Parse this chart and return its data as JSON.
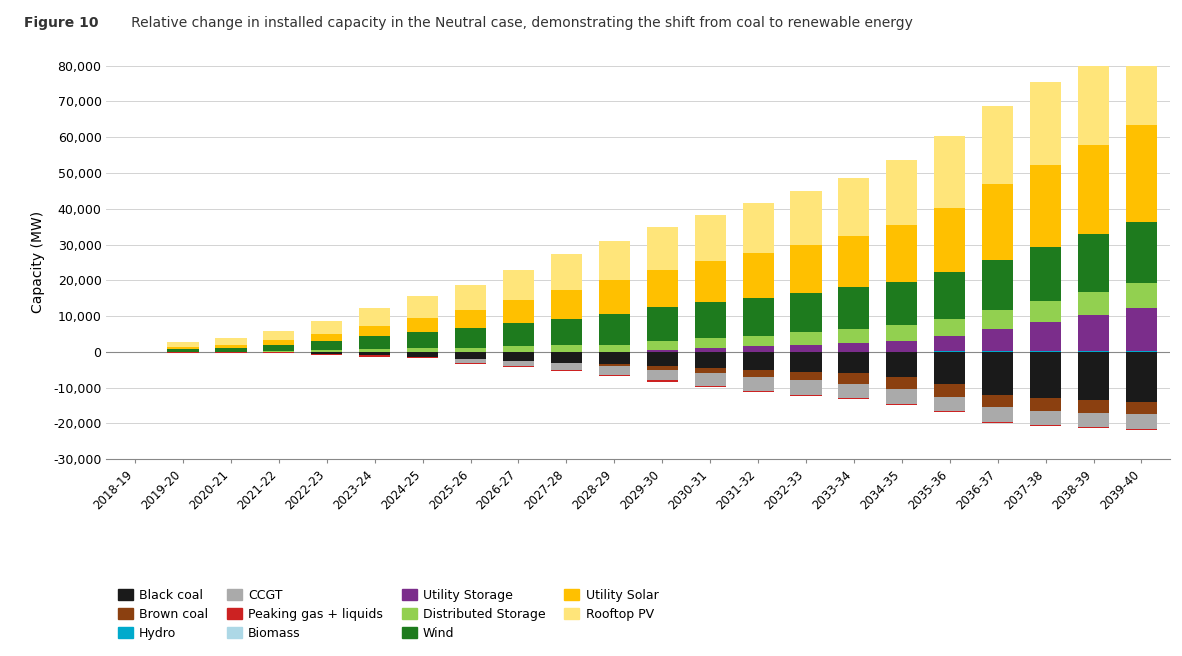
{
  "title_prefix": "Figure 10",
  "title_main": "    Relative change in installed capacity in the Neutral case, demonstrating the shift from coal to renewable energy",
  "ylabel": "Capacity (MW)",
  "ylim": [
    -30000,
    80000
  ],
  "yticks": [
    -30000,
    -20000,
    -10000,
    0,
    10000,
    20000,
    30000,
    40000,
    50000,
    60000,
    70000,
    80000
  ],
  "categories": [
    "2018-19",
    "2019-20",
    "2020-21",
    "2021-22",
    "2022-23",
    "2023-24",
    "2024-25",
    "2025-26",
    "2026-27",
    "2027-28",
    "2028-29",
    "2029-30",
    "2030-31",
    "2031-32",
    "2032-33",
    "2033-34",
    "2034-35",
    "2035-36",
    "2036-37",
    "2037-38",
    "2038-39",
    "2039-40"
  ],
  "series": {
    "Black coal": [
      0,
      0,
      0,
      0,
      -500,
      -1000,
      -1500,
      -2000,
      -2500,
      -3000,
      -3500,
      -4000,
      -4500,
      -5000,
      -5500,
      -6000,
      -7000,
      -9000,
      -12000,
      -13000,
      -13500,
      -14000
    ],
    "Brown coal": [
      0,
      0,
      0,
      0,
      0,
      0,
      0,
      0,
      0,
      0,
      -500,
      -1000,
      -1500,
      -2000,
      -2500,
      -3000,
      -3500,
      -3500,
      -3500,
      -3500,
      -3500,
      -3500
    ],
    "CCGT": [
      0,
      0,
      0,
      0,
      0,
      0,
      0,
      -1000,
      -1500,
      -2000,
      -2500,
      -3000,
      -3500,
      -4000,
      -4000,
      -4000,
      -4000,
      -4000,
      -4000,
      -4000,
      -4000,
      -4000
    ],
    "Peaking gas + liquids": [
      0,
      -300,
      -300,
      -300,
      -300,
      -300,
      -300,
      -300,
      -300,
      -300,
      -300,
      -300,
      -300,
      -300,
      -300,
      -300,
      -300,
      -300,
      -300,
      -300,
      -300,
      -300
    ],
    "Hydro": [
      0,
      0,
      0,
      0,
      0,
      0,
      0,
      0,
      0,
      0,
      0,
      0,
      0,
      0,
      0,
      0,
      0,
      300,
      300,
      300,
      300,
      300
    ],
    "Biomass": [
      0,
      0,
      0,
      0,
      0,
      0,
      0,
      0,
      0,
      0,
      0,
      0,
      0,
      0,
      0,
      0,
      0,
      0,
      0,
      0,
      0,
      0
    ],
    "Utility Storage": [
      0,
      0,
      0,
      0,
      0,
      0,
      0,
      0,
      0,
      0,
      0,
      500,
      1000,
      1500,
      2000,
      2500,
      3000,
      4000,
      6000,
      8000,
      10000,
      12000
    ],
    "Distributed Storage": [
      0,
      0,
      0,
      200,
      500,
      800,
      1000,
      1200,
      1500,
      1800,
      2000,
      2500,
      2800,
      3000,
      3500,
      4000,
      4500,
      5000,
      5500,
      6000,
      6500,
      7000
    ],
    "Wind": [
      0,
      800,
      1200,
      1800,
      2500,
      3500,
      4500,
      5500,
      6500,
      7500,
      8500,
      9500,
      10000,
      10500,
      11000,
      11500,
      12000,
      13000,
      14000,
      15000,
      16000,
      17000
    ],
    "Utility Solar": [
      0,
      500,
      800,
      1200,
      2000,
      3000,
      4000,
      5000,
      6500,
      8000,
      9500,
      10500,
      11500,
      12500,
      13500,
      14500,
      16000,
      18000,
      21000,
      23000,
      25000,
      27000
    ],
    "Rooftop PV": [
      0,
      1500,
      2000,
      2500,
      3500,
      5000,
      6000,
      7000,
      8500,
      10000,
      11000,
      12000,
      13000,
      14000,
      15000,
      16000,
      18000,
      20000,
      22000,
      23000,
      24000,
      25000
    ]
  },
  "colors": {
    "Black coal": "#1a1a1a",
    "Brown coal": "#8B4010",
    "CCGT": "#AAAAAA",
    "Peaking gas + liquids": "#CC2222",
    "Hydro": "#00AACC",
    "Biomass": "#ADD8E6",
    "Utility Storage": "#7B2D8B",
    "Distributed Storage": "#92D050",
    "Wind": "#1E7B1E",
    "Utility Solar": "#FFC000",
    "Rooftop PV": "#FFE57A"
  },
  "legend_order": [
    "Black coal",
    "Brown coal",
    "Hydro",
    "CCGT",
    "Peaking gas + liquids",
    "Biomass",
    "Utility Storage",
    "Distributed Storage",
    "Wind",
    "Utility Solar",
    "Rooftop PV"
  ]
}
